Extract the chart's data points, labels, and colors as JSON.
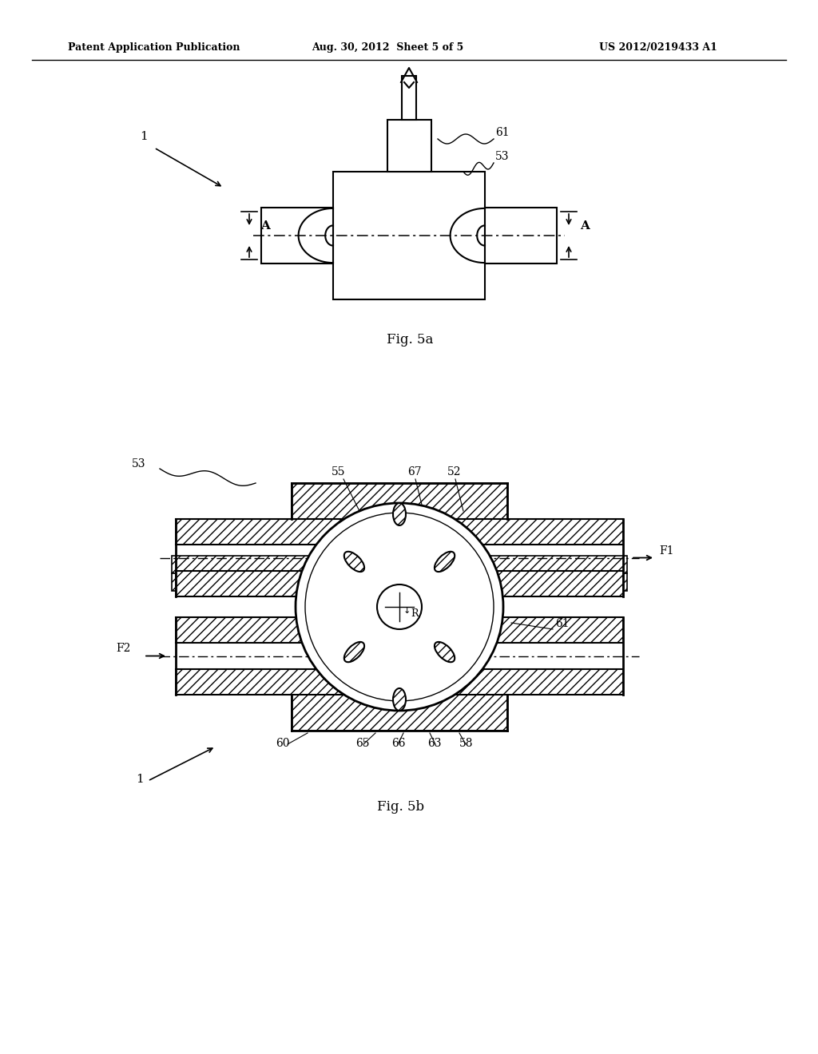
{
  "bg_color": "#ffffff",
  "line_color": "#000000",
  "header_left": "Patent Application Publication",
  "header_mid": "Aug. 30, 2012  Sheet 5 of 5",
  "header_right": "US 2012/0219433 A1",
  "fig5a_label": "Fig. 5a",
  "fig5b_label": "Fig. 5b",
  "label_1_top": "1",
  "label_1_bot": "1",
  "label_61_top": "61",
  "label_53_top": "53",
  "label_A_left": "A",
  "label_A_right": "A",
  "label_53_bot": "53",
  "label_55": "55",
  "label_67": "67",
  "label_52": "52",
  "label_F1": "F1",
  "label_F2": "F2",
  "label_61_bot": "61",
  "label_R": "R",
  "label_60": "60",
  "label_65": "65",
  "label_66": "66",
  "label_63": "63",
  "label_58": "58"
}
